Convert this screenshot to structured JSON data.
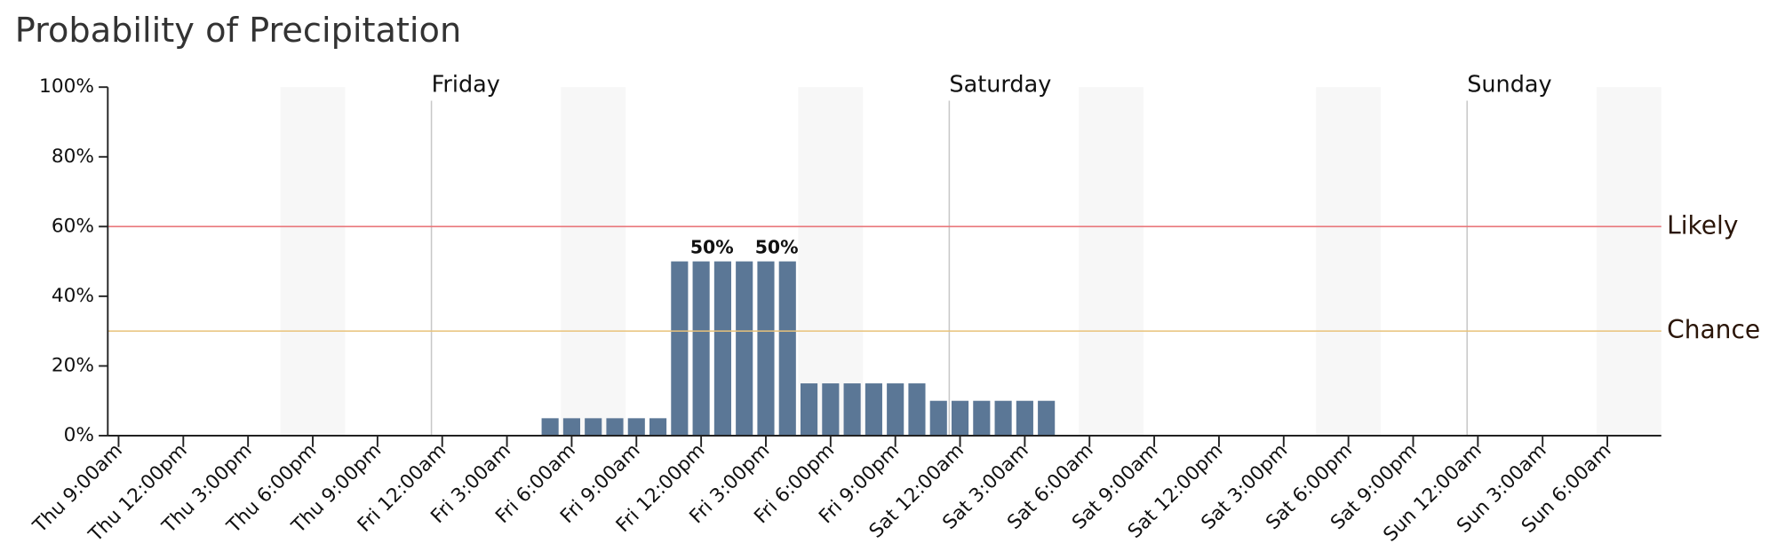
{
  "chart_data": {
    "type": "bar",
    "title": "Probability of Precipitation",
    "categories": [
      "Thu 9:00am",
      null,
      null,
      "Thu 12:00pm",
      null,
      null,
      "Thu 3:00pm",
      null,
      null,
      "Thu 6:00pm",
      null,
      null,
      "Thu 9:00pm",
      null,
      null,
      "Fri 12:00am",
      null,
      null,
      "Fri 3:00am",
      null,
      null,
      "Fri 6:00am",
      null,
      null,
      "Fri 9:00am",
      null,
      null,
      "Fri 12:00pm",
      null,
      null,
      "Fri 3:00pm",
      null,
      null,
      "Fri 6:00pm",
      null,
      null,
      "Fri 9:00pm",
      null,
      null,
      "Sat 12:00am",
      null,
      null,
      "Sat 3:00am",
      null,
      null,
      "Sat 6:00am",
      null,
      null,
      "Sat 9:00am",
      null,
      null,
      "Sat 12:00pm",
      null,
      null,
      "Sat 3:00pm",
      null,
      null,
      "Sat 6:00pm",
      null,
      null,
      "Sat 9:00pm",
      null,
      null,
      "Sun 12:00am",
      null,
      null,
      "Sun 3:00am",
      null,
      null,
      "Sun 6:00am",
      null,
      null
    ],
    "values": [
      0,
      0,
      0,
      0,
      0,
      0,
      0,
      0,
      0,
      0,
      0,
      0,
      0,
      0,
      0,
      0,
      0,
      0,
      0,
      0,
      5,
      5,
      5,
      5,
      5,
      5,
      50,
      50,
      50,
      50,
      50,
      50,
      15,
      15,
      15,
      15,
      15,
      15,
      10,
      10,
      10,
      10,
      10,
      10,
      0,
      0,
      0,
      0,
      0,
      0,
      0,
      0,
      0,
      0,
      0,
      0,
      0,
      0,
      0,
      0,
      0,
      0,
      0,
      0,
      0,
      0,
      0,
      0,
      0,
      0,
      0,
      0
    ],
    "value_labels": [
      null,
      null,
      null,
      null,
      null,
      null,
      null,
      null,
      null,
      null,
      null,
      null,
      null,
      null,
      null,
      null,
      null,
      null,
      null,
      null,
      null,
      null,
      null,
      null,
      null,
      null,
      null,
      null,
      "50%",
      null,
      null,
      "50%",
      null,
      null,
      null,
      null,
      null,
      null,
      null,
      null,
      null,
      null,
      null,
      null,
      null,
      null,
      null,
      null,
      null,
      null,
      null,
      null,
      null,
      null,
      null,
      null,
      null,
      null,
      null,
      null,
      null,
      null,
      null,
      null,
      null,
      null,
      null,
      null,
      null,
      null,
      null,
      null
    ],
    "color": "#5b7796",
    "ylim": [
      0,
      100
    ],
    "yticks": [
      {
        "value": 0,
        "label": "0%"
      },
      {
        "value": 20,
        "label": "20%"
      },
      {
        "value": 40,
        "label": "40%"
      },
      {
        "value": 60,
        "label": "60%"
      },
      {
        "value": 80,
        "label": "80%"
      },
      {
        "value": 100,
        "label": "100%"
      }
    ],
    "day_labels": [
      {
        "label": "Friday",
        "category": "Fri 12:00am"
      },
      {
        "label": "Saturday",
        "category": "Sat 12:00am"
      },
      {
        "label": "Sunday",
        "category": "Sun 12:00am"
      }
    ],
    "thresholds": [
      {
        "label": "Likely",
        "value": 60,
        "color": "#e8767a"
      },
      {
        "label": "Chance",
        "value": 30,
        "color": "#e8c27a"
      }
    ]
  }
}
